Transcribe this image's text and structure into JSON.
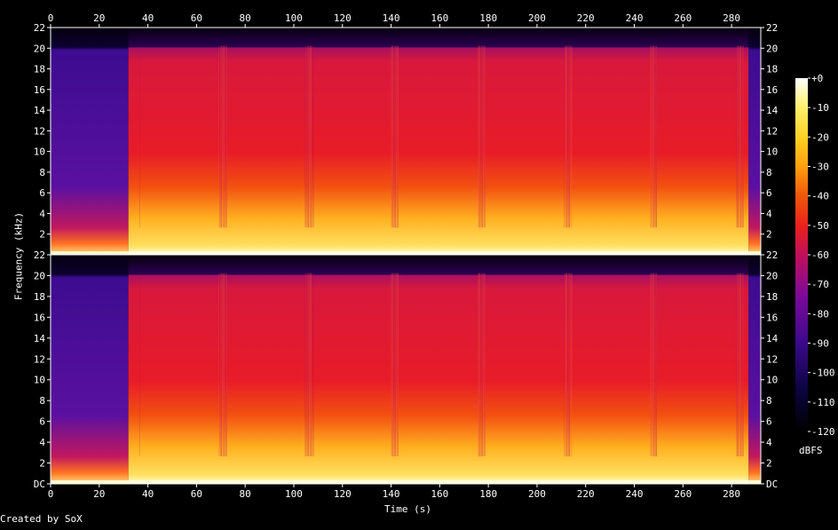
{
  "chart_data": {
    "type": "heatmap",
    "title": "",
    "xlabel": "Time (s)",
    "ylabel": "Frequency (kHz)",
    "xlim": [
      0,
      292
    ],
    "ylim": [
      0,
      22
    ],
    "x_ticks": [
      "0",
      "20",
      "40",
      "60",
      "80",
      "100",
      "120",
      "140",
      "160",
      "180",
      "200",
      "220",
      "240",
      "260",
      "280"
    ],
    "y_ticks": [
      "DC",
      "2",
      "4",
      "6",
      "8",
      "10",
      "12",
      "14",
      "16",
      "18",
      "20",
      "22"
    ],
    "y_ticks_top": [
      "2",
      "4",
      "6",
      "8",
      "10",
      "12",
      "14",
      "16",
      "18",
      "20",
      "22"
    ],
    "channels": 2,
    "colorbar": {
      "label": "dBFS",
      "range": [
        -120,
        0
      ],
      "ticks": [
        "+0",
        "-10",
        "-20",
        "-30",
        "-40",
        "-50",
        "-60",
        "-70",
        "-80",
        "-90",
        "-100",
        "-110",
        "-120"
      ]
    },
    "segments": [
      {
        "start": 0,
        "end": 32,
        "character": "quiet intro, energy below 6 kHz"
      },
      {
        "start": 32,
        "end": 287,
        "character": "full-band music, cutoff near 20 kHz"
      },
      {
        "start": 287,
        "end": 292,
        "character": "fade out"
      }
    ]
  },
  "footer": {
    "credit": "Created by SoX"
  },
  "colors": {
    "background": "#000000",
    "axis": "#ffffff"
  }
}
